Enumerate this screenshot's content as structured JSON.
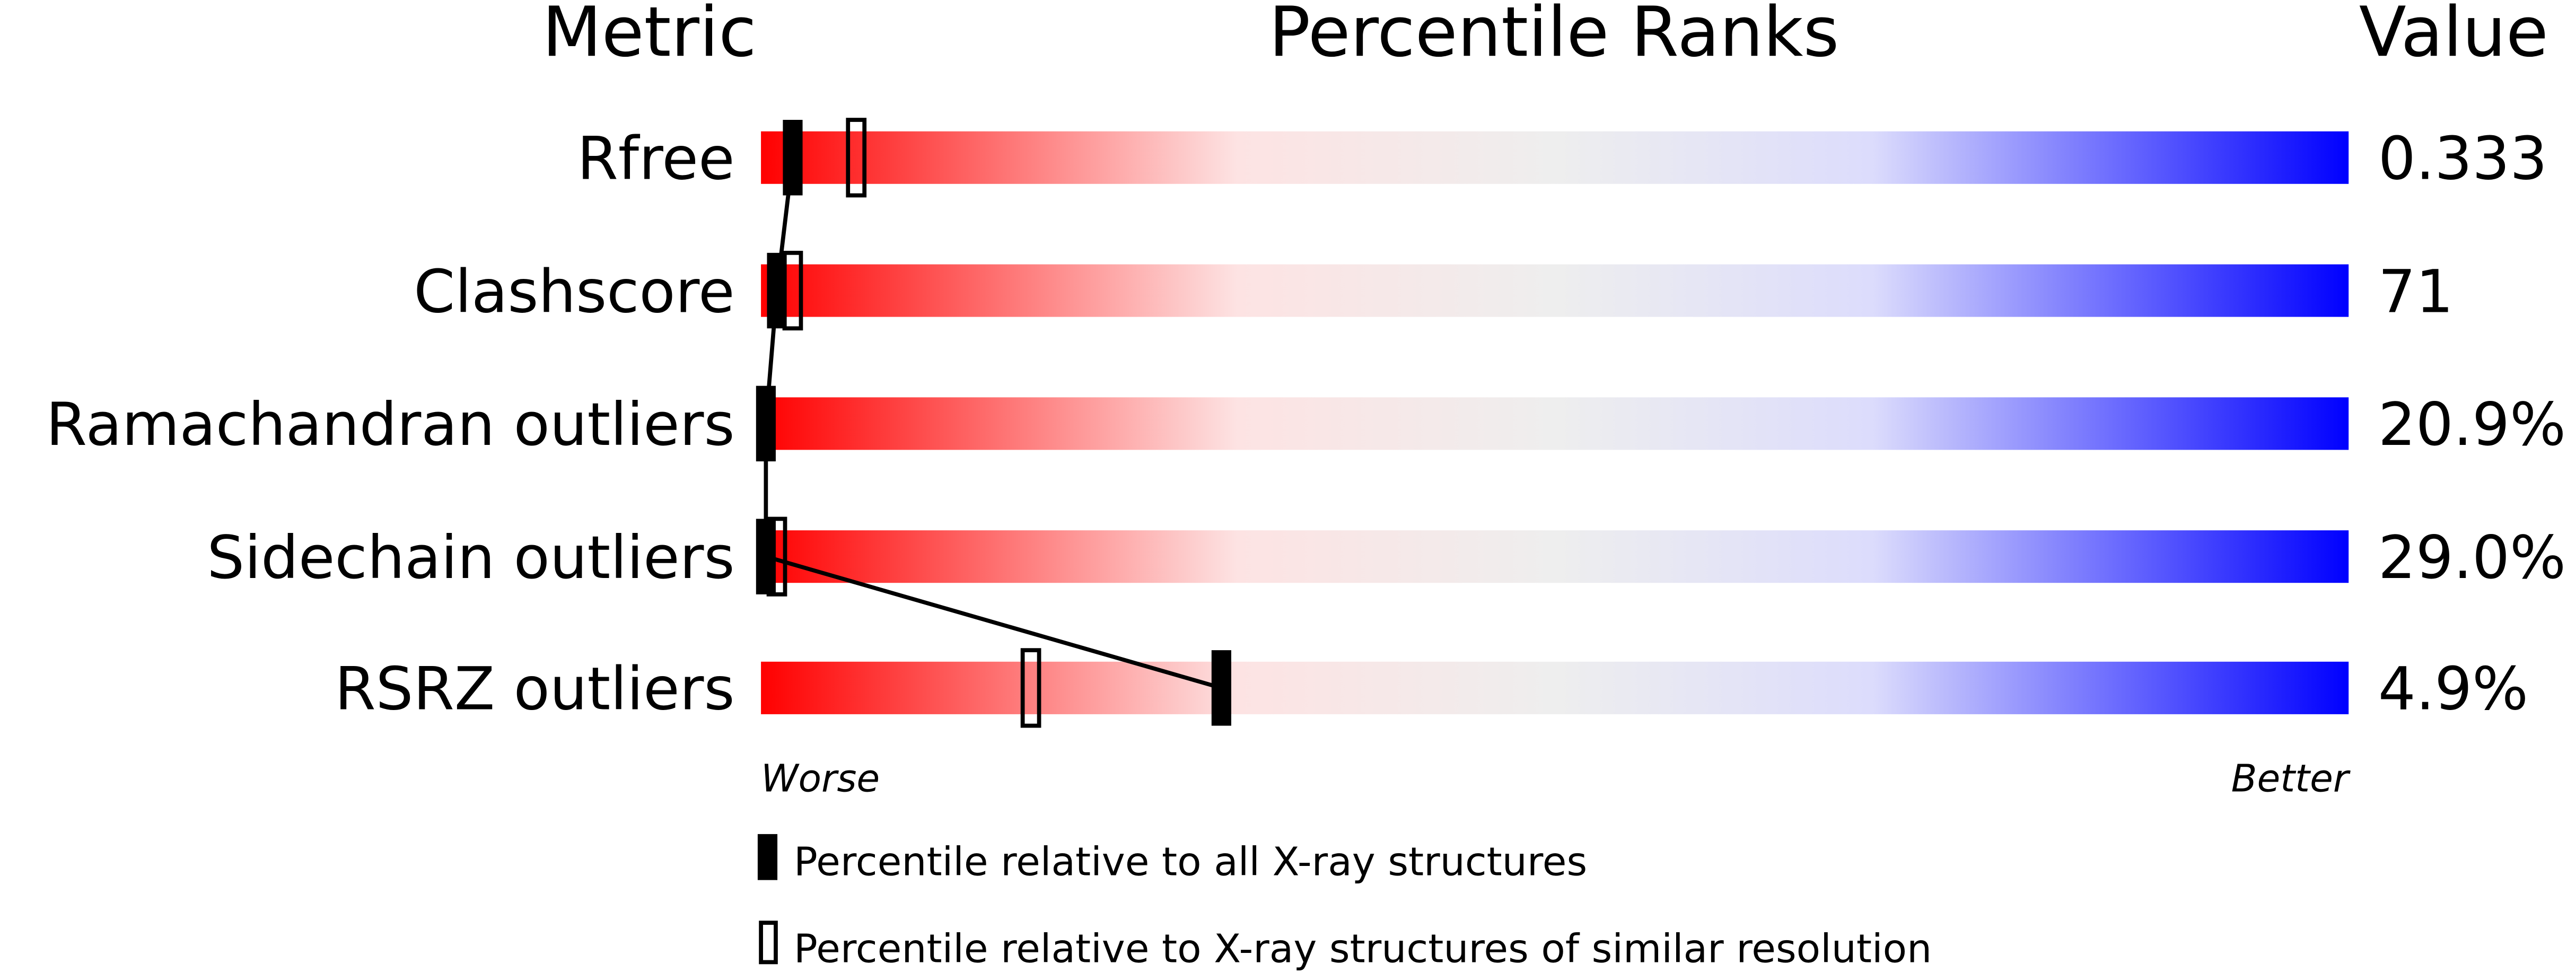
{
  "chart_data": {
    "type": "percentile-rank",
    "headers": {
      "metric": "Metric",
      "ranks": "Percentile Ranks",
      "value": "Value"
    },
    "axis": {
      "min_label": "Worse",
      "max_label": "Better",
      "range": [
        0,
        100
      ]
    },
    "metrics": [
      {
        "name": "Rfree",
        "value": "0.333",
        "percentile_all": 2,
        "percentile_similar": 6
      },
      {
        "name": "Clashscore",
        "value": "71",
        "percentile_all": 1,
        "percentile_similar": 2
      },
      {
        "name": "Ramachandran outliers",
        "value": "20.9%",
        "percentile_all": 0,
        "percentile_similar": null
      },
      {
        "name": "Sidechain outliers",
        "value": "29.0%",
        "percentile_all": 0,
        "percentile_similar": 1
      },
      {
        "name": "RSRZ outliers",
        "value": "4.9%",
        "percentile_all": 29,
        "percentile_similar": 17
      }
    ],
    "legend": {
      "all": "Percentile relative to all X-ray structures",
      "similar": "Percentile relative to X-ray structures of similar resolution"
    },
    "gradient_colors": [
      "#ff0000",
      "#fde3e3",
      "#eeeeee",
      "#dcdcfc",
      "#0000ff"
    ]
  }
}
